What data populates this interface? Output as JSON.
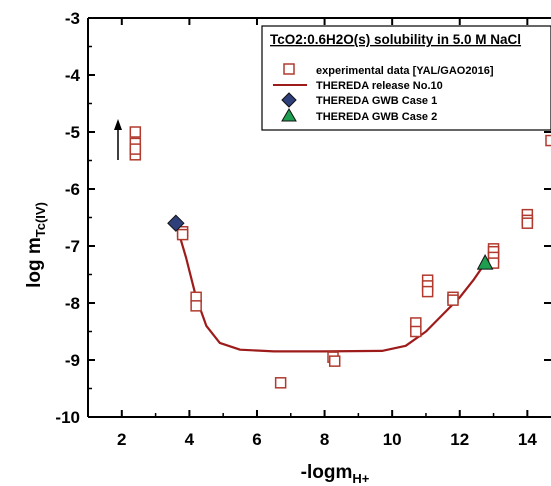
{
  "chart_data": {
    "type": "scatter",
    "title": "TcO2:0.6H2O(s) solubility in 5.0 M NaCl",
    "xlabel": "-logm",
    "xlabel_sub": "H+",
    "ylabel": "log m",
    "ylabel_sub": "Tc(IV)",
    "xlim": [
      1,
      14.7
    ],
    "ylim": [
      -10,
      -3
    ],
    "xticks": [
      2,
      4,
      6,
      8,
      10,
      12,
      14
    ],
    "yticks": [
      -3,
      -4,
      -5,
      -6,
      -7,
      -8,
      -9,
      -10
    ],
    "grid": false,
    "legend_position": "top-right",
    "colors": {
      "experimental": "#b03a2e",
      "release": "#9e1b1b",
      "case1": "#2e3f7a",
      "case2": "#1e9e50"
    },
    "series": [
      {
        "name": "experimental data [YAL/GAO2016]",
        "marker": "open-square",
        "points": [
          [
            2.4,
            -5.0
          ],
          [
            2.4,
            -5.2
          ],
          [
            2.4,
            -5.4
          ],
          [
            2.4,
            -5.3
          ],
          [
            3.8,
            -6.75
          ],
          [
            3.8,
            -6.8
          ],
          [
            4.2,
            -7.9
          ],
          [
            4.2,
            -8.05
          ],
          [
            6.7,
            -9.4
          ],
          [
            8.25,
            -8.95
          ],
          [
            8.3,
            -9.02
          ],
          [
            10.7,
            -8.35
          ],
          [
            10.7,
            -8.5
          ],
          [
            11.05,
            -7.6
          ],
          [
            11.05,
            -7.7
          ],
          [
            11.05,
            -7.8
          ],
          [
            11.8,
            -7.9
          ],
          [
            11.8,
            -7.95
          ],
          [
            13.0,
            -7.05
          ],
          [
            13.0,
            -7.1
          ],
          [
            13.0,
            -7.2
          ],
          [
            13.0,
            -7.3
          ],
          [
            14.0,
            -6.45
          ],
          [
            14.0,
            -6.55
          ],
          [
            14.0,
            -6.6
          ],
          [
            14.7,
            -5.15
          ]
        ]
      },
      {
        "name": "THEREDA release No.10",
        "marker": "line",
        "points": [
          [
            3.6,
            -6.6
          ],
          [
            3.9,
            -7.2
          ],
          [
            4.2,
            -7.9
          ],
          [
            4.5,
            -8.4
          ],
          [
            4.9,
            -8.7
          ],
          [
            5.5,
            -8.82
          ],
          [
            6.5,
            -8.85
          ],
          [
            8.0,
            -8.85
          ],
          [
            9.7,
            -8.84
          ],
          [
            10.4,
            -8.75
          ],
          [
            11.0,
            -8.5
          ],
          [
            11.5,
            -8.2
          ],
          [
            12.0,
            -7.9
          ],
          [
            12.4,
            -7.6
          ],
          [
            12.75,
            -7.3
          ]
        ]
      },
      {
        "name": "THEREDA GWB Case 1",
        "marker": "filled-diamond",
        "points": [
          [
            3.6,
            -6.6
          ]
        ]
      },
      {
        "name": "THEREDA GWB Case 2",
        "marker": "filled-triangle",
        "points": [
          [
            12.75,
            -7.3
          ]
        ]
      }
    ]
  }
}
